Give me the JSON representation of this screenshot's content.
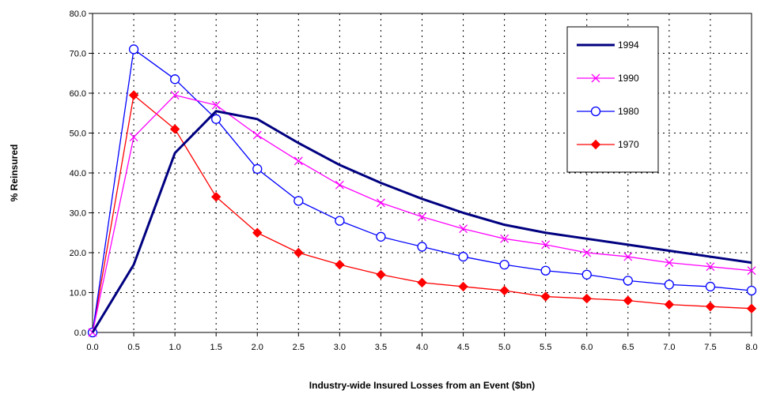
{
  "chart_data": {
    "type": "line",
    "title": "",
    "xlabel": "Industry-wide Insured Losses from an Event ($bn)",
    "ylabel": "% Reinsured",
    "x": [
      0.0,
      0.5,
      1.0,
      1.5,
      2.0,
      2.5,
      3.0,
      3.5,
      4.0,
      4.5,
      5.0,
      5.5,
      6.0,
      6.5,
      7.0,
      7.5,
      8.0
    ],
    "x_tick_labels": [
      "0.0",
      "0.5",
      "1.0",
      "1.5",
      "2.0",
      "2.5",
      "3.0",
      "3.5",
      "4.0",
      "4.5",
      "5.0",
      "5.5",
      "6.0",
      "6.5",
      "7.0",
      "7.5",
      "8.0"
    ],
    "y_tick_labels": [
      "0.0",
      "10.0",
      "20.0",
      "30.0",
      "40.0",
      "50.0",
      "60.0",
      "70.0",
      "80.0"
    ],
    "xlim": [
      0,
      8
    ],
    "ylim": [
      0,
      80
    ],
    "grid": "dotted",
    "legend_position": "top-right",
    "series": [
      {
        "name": "1994",
        "color": "#000080",
        "marker": "none",
        "values": [
          0.0,
          17.0,
          45.0,
          55.5,
          53.5,
          47.5,
          42.0,
          37.5,
          33.5,
          30.0,
          27.0,
          25.0,
          23.5,
          22.0,
          20.5,
          19.0,
          17.5
        ]
      },
      {
        "name": "1990",
        "color": "#ff00ff",
        "marker": "x",
        "values": [
          0.0,
          49.0,
          59.5,
          57.0,
          49.5,
          43.0,
          37.0,
          32.5,
          29.0,
          26.0,
          23.5,
          22.0,
          20.0,
          19.0,
          17.5,
          16.5,
          15.5
        ]
      },
      {
        "name": "1980",
        "color": "#0000ff",
        "marker": "circle",
        "values": [
          0.0,
          71.0,
          63.5,
          53.5,
          41.0,
          33.0,
          28.0,
          24.0,
          21.5,
          19.0,
          17.0,
          15.5,
          14.5,
          13.0,
          12.0,
          11.5,
          10.5
        ]
      },
      {
        "name": "1970",
        "color": "#ff0000",
        "marker": "diamond",
        "values": [
          0.0,
          59.5,
          51.0,
          34.0,
          25.0,
          20.0,
          17.0,
          14.5,
          12.5,
          11.5,
          10.5,
          9.0,
          8.5,
          8.0,
          7.0,
          6.5,
          6.0
        ]
      }
    ]
  }
}
